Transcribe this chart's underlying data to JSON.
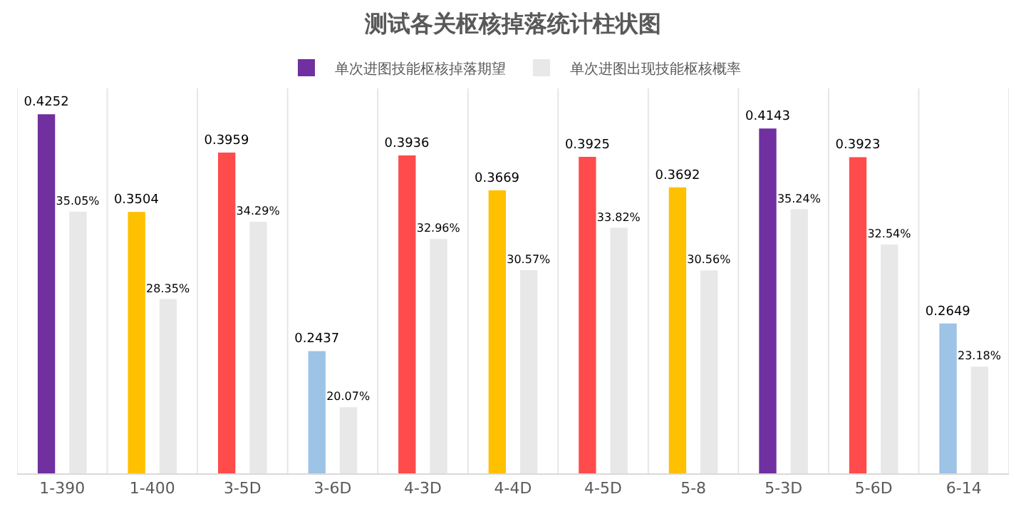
{
  "chart_data": {
    "type": "bar",
    "title": "测试各关枢核掉落统计柱状图",
    "categories": [
      "1-390",
      "1-400",
      "3-5D",
      "3-6D",
      "4-3D",
      "4-4D",
      "4-5D",
      "5-8",
      "5-3D",
      "5-6D",
      "6-14"
    ],
    "series": [
      {
        "name": "单次进图技能枢核掉落期望",
        "color": "#9dc3e6",
        "colors": [
          "#7030a0",
          "#ffc000",
          "#ff4b4b",
          "#9dc3e6",
          "#ff4b4b",
          "#ffc000",
          "#ff4b4b",
          "#ffc000",
          "#7030a0",
          "#ff4b4b",
          "#9dc3e6"
        ],
        "values": [
          0.4252,
          0.3504,
          0.3959,
          0.2437,
          0.3936,
          0.3669,
          0.3925,
          0.3692,
          0.4143,
          0.3923,
          0.2649
        ],
        "value_labels": [
          "0.4252",
          "0.3504",
          "0.3959",
          "0.2437",
          "0.3936",
          "0.3669",
          "0.3925",
          "0.3692",
          "0.4143",
          "0.3923",
          "0.2649"
        ]
      },
      {
        "name": "单次进图出现技能枢核概率",
        "color": "#e8e8e8",
        "values": [
          0.3505,
          0.2835,
          0.3429,
          0.2007,
          0.3296,
          0.3057,
          0.3382,
          0.3056,
          0.3524,
          0.3254,
          0.2318
        ],
        "value_labels": [
          "35.05%",
          "28.35%",
          "34.29%",
          "20.07%",
          "32.96%",
          "30.57%",
          "33.82%",
          "30.56%",
          "35.24%",
          "32.54%",
          "23.18%"
        ]
      }
    ],
    "ylim": [
      0.15,
      0.445
    ],
    "tick_labels": "x",
    "grid": "x",
    "legend": "top"
  }
}
